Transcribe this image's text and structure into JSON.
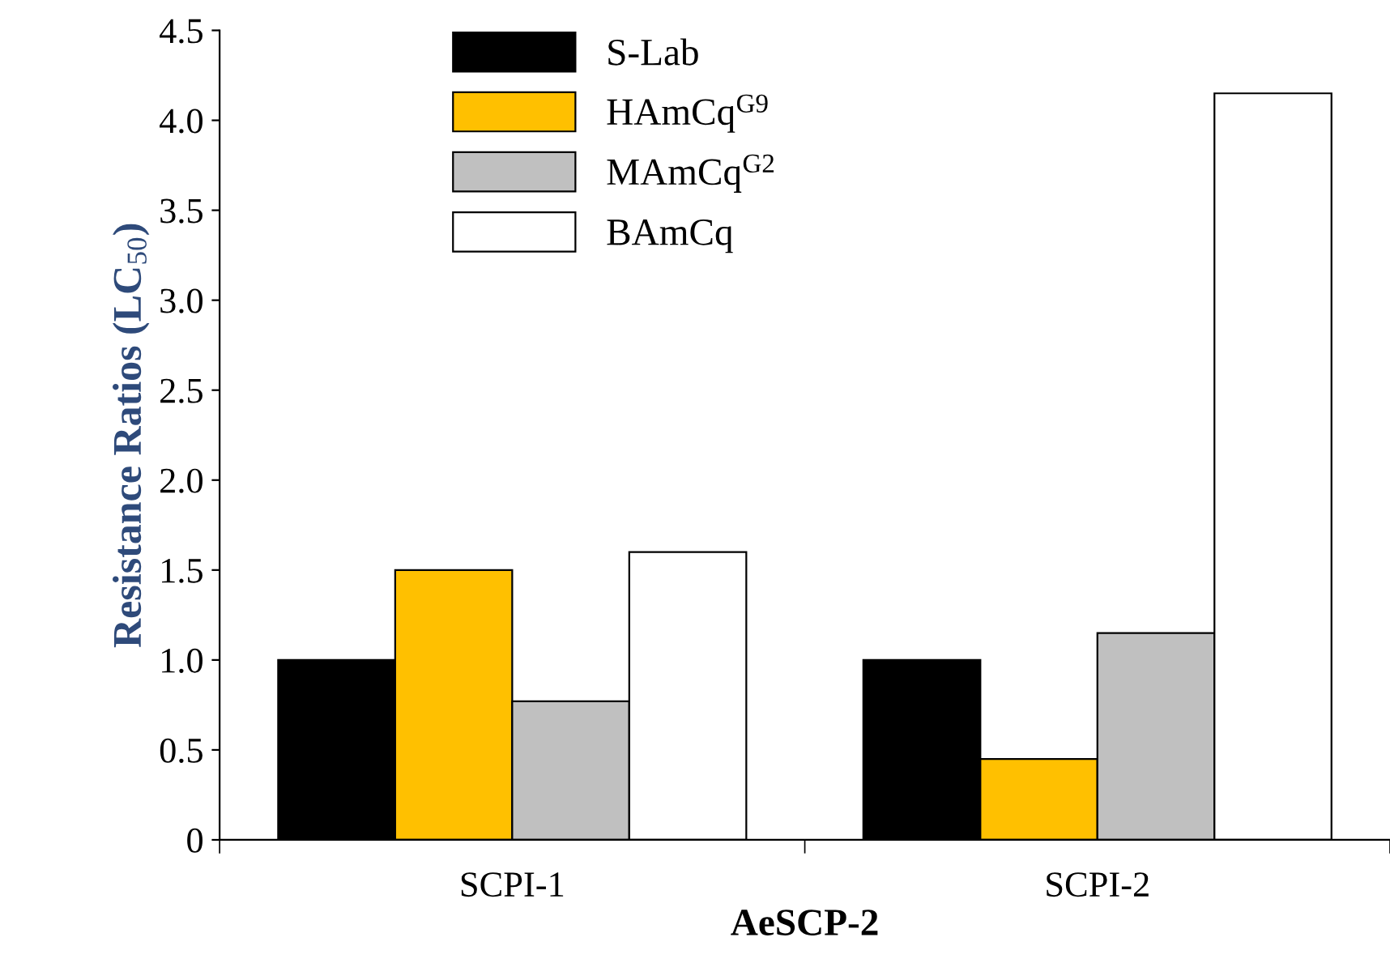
{
  "chart_data": {
    "type": "bar",
    "xlabel": "AeSCP-2",
    "ylabel": "Resistance Ratios (LC$_{50}$)",
    "categories": [
      "SCPI-1",
      "SCPI-2"
    ],
    "series": [
      {
        "name": "S-Lab",
        "color": "#000000",
        "values": [
          1.0,
          1.0
        ]
      },
      {
        "name": "HAmCq$^{G9}$",
        "color": "#ffc000",
        "values": [
          1.5,
          0.45
        ]
      },
      {
        "name": "MAmCq$^{G2}$",
        "color": "#c0c0c0",
        "values": [
          0.77,
          1.15
        ]
      },
      {
        "name": "BAmCq",
        "color": "#ffffff",
        "values": [
          1.6,
          4.15
        ]
      }
    ],
    "ylim": [
      0,
      4.5
    ],
    "yticks": [
      0,
      {
        "value": 0.5,
        "label": "0.5"
      },
      {
        "value": 1,
        "label": "1.0"
      },
      {
        "value": 1.5,
        "label": "1.5"
      },
      {
        "value": 2,
        "label": "2.0"
      },
      {
        "value": 2.5,
        "label": "2.5"
      },
      {
        "value": 3,
        "label": "3.0"
      },
      {
        "value": 3.5,
        "label": "3.5"
      },
      {
        "value": 4,
        "label": "4.0"
      },
      {
        "value": 4.5,
        "label": "4.5"
      }
    ],
    "grid": false,
    "legend": "top left"
  }
}
